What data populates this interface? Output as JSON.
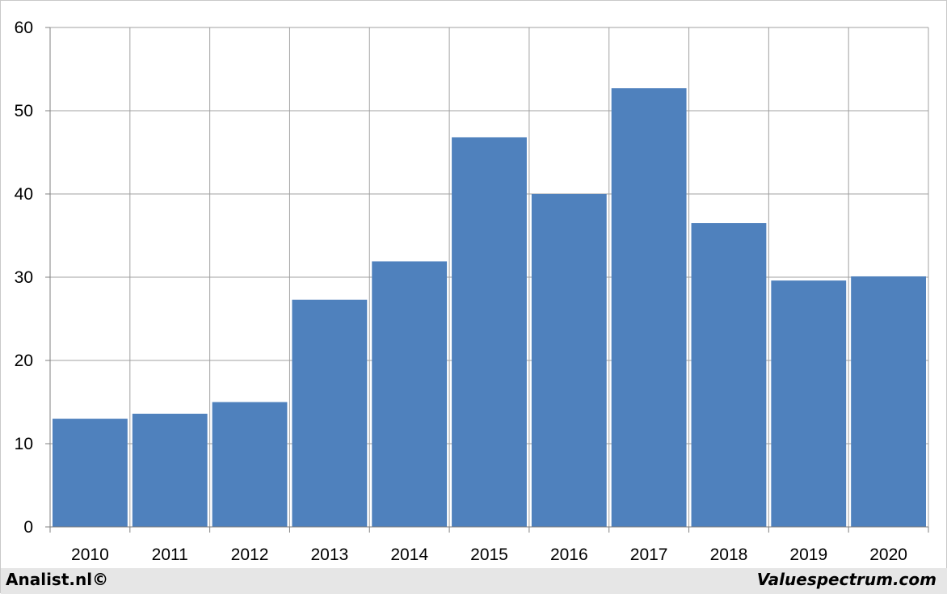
{
  "chart_data": {
    "type": "bar",
    "categories": [
      "2010",
      "2011",
      "2012",
      "2013",
      "2014",
      "2015",
      "2016",
      "2017",
      "2018",
      "2019",
      "2020"
    ],
    "values": [
      13.0,
      13.6,
      15.0,
      27.3,
      31.9,
      46.8,
      40.0,
      52.7,
      36.5,
      29.6,
      30.1
    ],
    "ylim": [
      0,
      60
    ],
    "yticks": [
      "0",
      "10",
      "20",
      "30",
      "40",
      "50",
      "60"
    ],
    "grid": true,
    "bar_color": "#4F81BD",
    "grid_color": "#A0A0A0",
    "title": "",
    "xlabel": "",
    "ylabel": ""
  },
  "footer": {
    "left": "Analist.nl©",
    "right": "Valuespectrum.com"
  }
}
